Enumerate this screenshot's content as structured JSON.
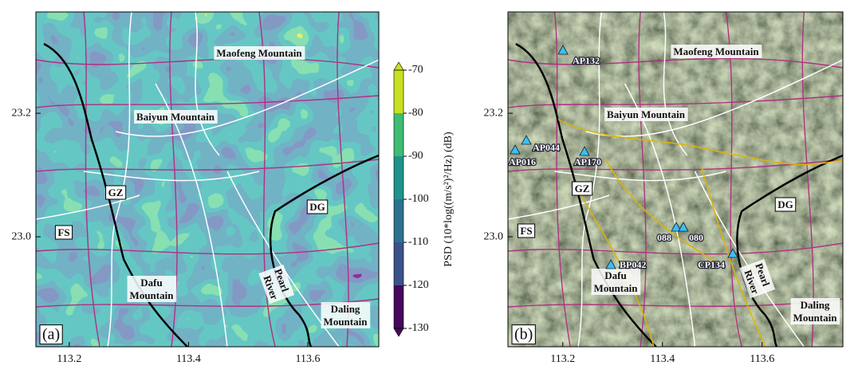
{
  "panel_a": {
    "label": "(a)",
    "xlim": [
      113.144,
      113.719
    ],
    "ylim": [
      22.822,
      23.364
    ],
    "xticks": [
      113.2,
      113.4,
      113.6
    ],
    "yticks": [
      {
        "value": 23.0,
        "label": "23.0"
      },
      {
        "value": 23.2,
        "label": "23.2"
      }
    ],
    "places": [
      [
        "Maofeng Mountain"
      ],
      [
        "Baiyun Mountain"
      ],
      [
        "GZ"
      ],
      [
        "FS"
      ],
      [
        "DG"
      ],
      [
        "Dafu",
        "Mountain"
      ],
      [
        "Pearl",
        "River"
      ],
      [
        "Daling",
        "Mountain"
      ]
    ],
    "colorbar": {
      "label": "PSD (10*log((m/s²)²/Hz) (dB)",
      "lim": [
        -130,
        -70
      ],
      "ticks": [
        -70,
        -80,
        -90,
        -100,
        -110,
        -120,
        -130
      ],
      "colors": [
        "#46085c",
        "#3b528b",
        "#2c728e",
        "#21918c",
        "#3fbc73",
        "#c8e020"
      ]
    }
  },
  "panel_b": {
    "label": "(b)",
    "xlim": [
      113.09,
      113.762
    ],
    "ylim": [
      22.822,
      23.364
    ],
    "xticks": [
      113.2,
      113.4,
      113.6
    ],
    "yticks": [
      {
        "value": 23.0,
        "label": "23.0"
      },
      {
        "value": 23.2,
        "label": "23.2"
      }
    ],
    "places": [
      [
        "Maofeng Mountain"
      ],
      [
        "Baiyun Mountain"
      ],
      [
        "GZ"
      ],
      [
        "FS"
      ],
      [
        "DG"
      ],
      [
        "Dafu",
        "Mountain"
      ],
      [
        "Pearl",
        "River"
      ],
      [
        "Daling",
        "Mountain"
      ]
    ],
    "stations": [
      "AP132",
      "AP044",
      "AP016",
      "AP170",
      "088",
      "080",
      "BP042",
      "CP134"
    ]
  }
}
